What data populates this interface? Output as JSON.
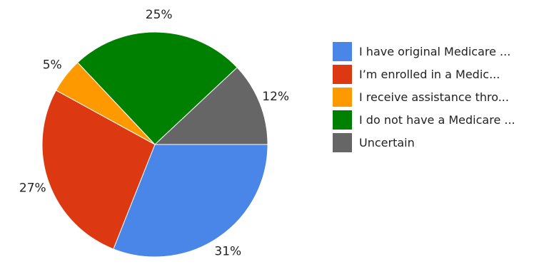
{
  "chart_data": {
    "type": "pie",
    "title": "",
    "slices": [
      {
        "label": "I have original Medicare ...",
        "value": 31,
        "percent_label": "31%",
        "color": "#4a86e8"
      },
      {
        "label": "I’m enrolled in a Medic...",
        "value": 27,
        "percent_label": "27%",
        "color": "#dc3912"
      },
      {
        "label": "I receive assistance thro...",
        "value": 5,
        "percent_label": "5%",
        "color": "#ff9900"
      },
      {
        "label": "I do not have a Medicare ...",
        "value": 25,
        "percent_label": "25%",
        "color": "#008000"
      },
      {
        "label": "Uncertain",
        "value": 12,
        "percent_label": "12%",
        "color": "#666666"
      }
    ],
    "start_angle_deg": 0,
    "direction": "clockwise",
    "legend_position": "right"
  }
}
